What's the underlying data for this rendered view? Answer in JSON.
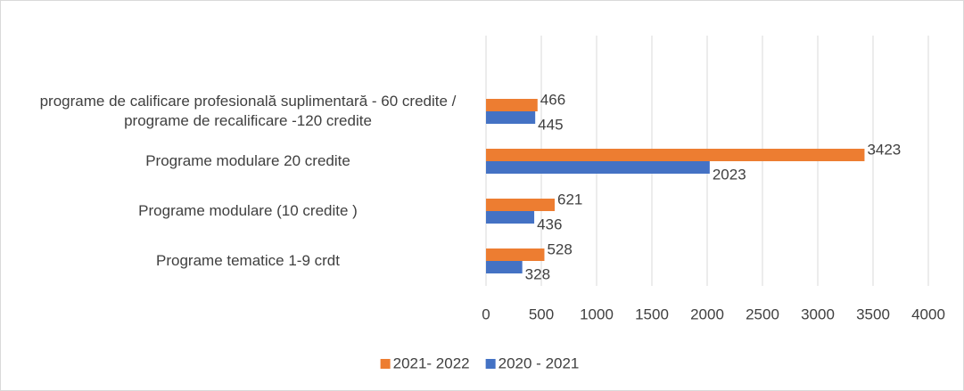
{
  "chart_data": {
    "type": "bar",
    "orientation": "horizontal",
    "categories": [
      "programe de calificare profesională suplimentară - 60 credite / programe de recalificare -120 credite",
      "Programe modulare 20 credite",
      "Programe modulare (10 credite )",
      "Programe tematice 1-9 crdt"
    ],
    "series": [
      {
        "name": "2021- 2022",
        "color": "#ED7D31",
        "values": [
          466,
          3423,
          621,
          528
        ]
      },
      {
        "name": "2020 - 2021",
        "color": "#4472C4",
        "values": [
          445,
          2023,
          436,
          328
        ]
      }
    ],
    "xlim": [
      0,
      4000
    ],
    "xticks": [
      0,
      500,
      1000,
      1500,
      2000,
      2500,
      3000,
      3500,
      4000
    ],
    "grid": true,
    "legend": "bottom",
    "data_labels": true
  }
}
